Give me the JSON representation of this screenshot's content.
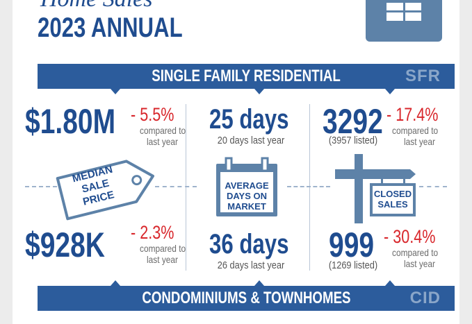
{
  "header": {
    "script_title": "Home Sales",
    "title": "2023 ANNUAL"
  },
  "icons": {
    "house": "house-icon",
    "tag": "price-tag-icon",
    "calendar": "calendar-icon",
    "signpost": "signpost-icon"
  },
  "colors": {
    "navy": "#1f4c8f",
    "band": "#2c5c9c",
    "red": "#d8262b",
    "icon_fill": "#5d82a8"
  },
  "sfr_band": {
    "label": "SINGLE FAMILY RESIDENTIAL",
    "code": "SFR"
  },
  "cid_band": {
    "label": "CONDOMINIUMS & TOWNHOMES",
    "code": "CID"
  },
  "sfr": {
    "price": {
      "value": "$1.80M",
      "change": "- 5.5%",
      "note_line1": "compared to",
      "note_line2": "last year"
    },
    "dom": {
      "value": "25 days",
      "note": "20 days last year"
    },
    "sales": {
      "value": "3292",
      "listed": "(3957 listed)",
      "change": "- 17.4%",
      "note_line1": "compared to",
      "note_line2": "last year"
    }
  },
  "cid": {
    "price": {
      "value": "$928K",
      "change": "- 2.3%",
      "note_line1": "compared to",
      "note_line2": "last year"
    },
    "dom": {
      "value": "36 days",
      "note": "26 days last year"
    },
    "sales": {
      "value": "999",
      "listed": "(1269 listed)",
      "change": "- 30.4%",
      "note_line1": "compared to",
      "note_line2": "last year"
    }
  },
  "labels": {
    "median": {
      "l1": "MEDIAN",
      "l2": "SALE",
      "l3": "PRICE"
    },
    "dom": {
      "l1": "AVERAGE",
      "l2": "DAYS ON",
      "l3": "MARKET"
    },
    "closed": {
      "l1": "CLOSED",
      "l2": "SALES"
    }
  }
}
